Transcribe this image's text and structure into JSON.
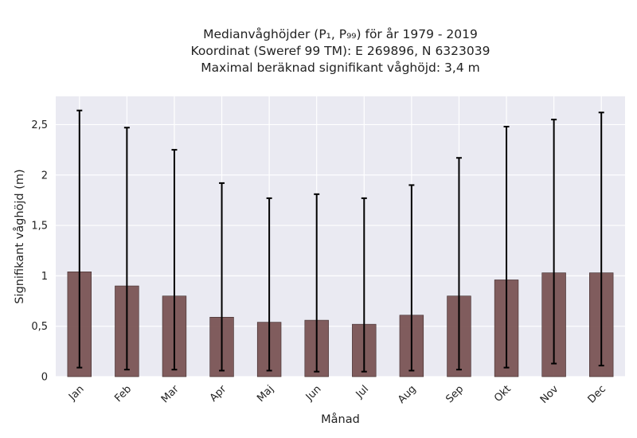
{
  "chart_data": {
    "type": "bar",
    "title_lines": [
      "Medianvåghöjder (P₁, P₉₉) för år 1979 - 2019",
      "Koordinat (Sweref 99 TM): E 269896, N 6323039",
      "Maximal beräknad signifikant våghöjd: 3,4 m"
    ],
    "xlabel": "Månad",
    "ylabel": "Signifikant våghöjd (m)",
    "categories": [
      "Jan",
      "Feb",
      "Mar",
      "Apr",
      "Maj",
      "Jun",
      "Jul",
      "Aug",
      "Sep",
      "Okt",
      "Nov",
      "Dec"
    ],
    "series": [
      {
        "values": [
          1.04,
          0.9,
          0.8,
          0.59,
          0.54,
          0.56,
          0.52,
          0.61,
          0.8,
          0.96,
          1.03,
          1.03
        ],
        "err_low": [
          0.09,
          0.07,
          0.07,
          0.06,
          0.06,
          0.05,
          0.05,
          0.06,
          0.07,
          0.09,
          0.13,
          0.11
        ],
        "err_high": [
          2.64,
          2.47,
          2.25,
          1.92,
          1.77,
          1.81,
          1.77,
          1.9,
          2.17,
          2.48,
          2.55,
          2.62
        ]
      }
    ],
    "ylim": [
      0,
      2.78
    ],
    "yticks": [
      0,
      0.5,
      1,
      1.5,
      2,
      2.5
    ],
    "ytick_labels": [
      "0",
      "0,5",
      "1",
      "1,5",
      "2",
      "2,5"
    ],
    "grid": true,
    "colors": {
      "bar": "#7a5454",
      "background": "#eaeaf2",
      "grid": "#ffffff",
      "error": "#000000"
    }
  }
}
